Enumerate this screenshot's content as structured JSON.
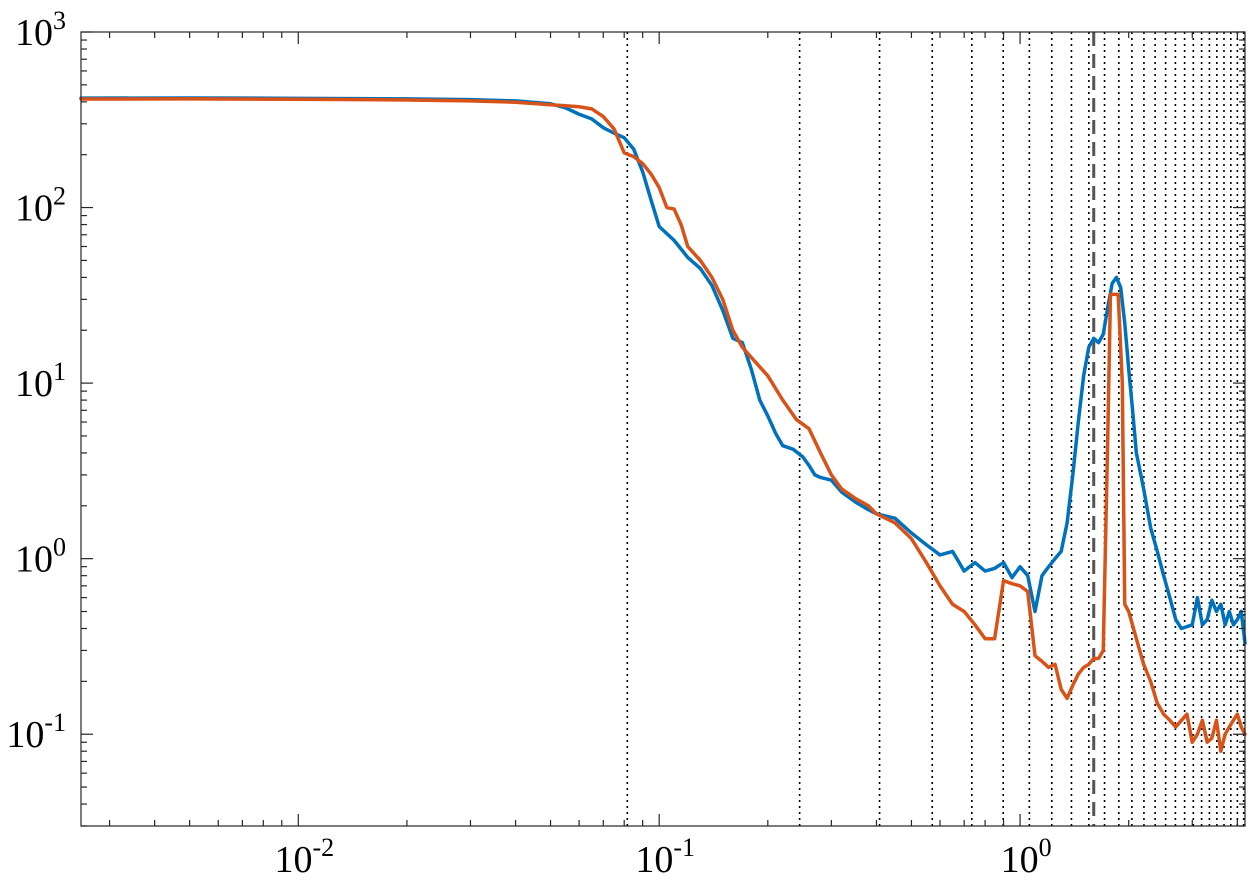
{
  "chart_data": {
    "type": "line",
    "xscale": "log",
    "yscale": "log",
    "xlim": [
      0.0025,
      4.2
    ],
    "ylim": [
      0.03,
      1000
    ],
    "grid": false,
    "x_ticks": [
      {
        "value": 0.01,
        "base": "10",
        "exp": "-2"
      },
      {
        "value": 0.1,
        "base": "10",
        "exp": "-1"
      },
      {
        "value": 1,
        "base": "10",
        "exp": "0"
      }
    ],
    "y_ticks": [
      {
        "value": 0.1,
        "base": "10",
        "exp": "-1"
      },
      {
        "value": 1,
        "base": "10",
        "exp": "0"
      },
      {
        "value": 10,
        "base": "10",
        "exp": "1"
      },
      {
        "value": 100,
        "base": "10",
        "exp": "2"
      },
      {
        "value": 1000,
        "base": "10",
        "exp": "3"
      }
    ],
    "reference_lines": {
      "dotted_x": [
        0.0816,
        0.245,
        0.408,
        0.571,
        0.735,
        0.898,
        1.061,
        1.224,
        1.388,
        1.551,
        1.714,
        1.878,
        2.041,
        2.204,
        2.367,
        2.531,
        2.694,
        2.857,
        3.02,
        3.184,
        3.347,
        3.51,
        3.673,
        3.837,
        4.0,
        4.163
      ],
      "dashed_x": [
        1.6
      ],
      "dotted_color": "#000000",
      "dashed_color": "#555555"
    },
    "series": [
      {
        "color": "#0072BD",
        "points": [
          [
            0.0025,
            420
          ],
          [
            0.005,
            421
          ],
          [
            0.01,
            419
          ],
          [
            0.02,
            416
          ],
          [
            0.03,
            412
          ],
          [
            0.04,
            405
          ],
          [
            0.05,
            390
          ],
          [
            0.055,
            370
          ],
          [
            0.06,
            340
          ],
          [
            0.065,
            320
          ],
          [
            0.07,
            285
          ],
          [
            0.075,
            265
          ],
          [
            0.08,
            250
          ],
          [
            0.085,
            215
          ],
          [
            0.09,
            160
          ],
          [
            0.095,
            110
          ],
          [
            0.1,
            78
          ],
          [
            0.11,
            65
          ],
          [
            0.12,
            52
          ],
          [
            0.13,
            45
          ],
          [
            0.14,
            36
          ],
          [
            0.15,
            26
          ],
          [
            0.16,
            18
          ],
          [
            0.17,
            17
          ],
          [
            0.18,
            12
          ],
          [
            0.19,
            8
          ],
          [
            0.2,
            6.5
          ],
          [
            0.21,
            5.2
          ],
          [
            0.22,
            4.4
          ],
          [
            0.235,
            4.2
          ],
          [
            0.25,
            3.8
          ],
          [
            0.26,
            3.4
          ],
          [
            0.27,
            3.0
          ],
          [
            0.28,
            2.9
          ],
          [
            0.3,
            2.8
          ],
          [
            0.32,
            2.4
          ],
          [
            0.35,
            2.1
          ],
          [
            0.38,
            1.9
          ],
          [
            0.4,
            1.8
          ],
          [
            0.45,
            1.7
          ],
          [
            0.5,
            1.4
          ],
          [
            0.55,
            1.2
          ],
          [
            0.6,
            1.05
          ],
          [
            0.65,
            1.1
          ],
          [
            0.7,
            0.85
          ],
          [
            0.75,
            0.95
          ],
          [
            0.8,
            0.85
          ],
          [
            0.85,
            0.88
          ],
          [
            0.9,
            0.95
          ],
          [
            0.95,
            0.78
          ],
          [
            1.0,
            0.9
          ],
          [
            1.05,
            0.8
          ],
          [
            1.1,
            0.5
          ],
          [
            1.15,
            0.8
          ],
          [
            1.2,
            0.9
          ],
          [
            1.25,
            1.0
          ],
          [
            1.3,
            1.1
          ],
          [
            1.35,
            1.6
          ],
          [
            1.4,
            3.0
          ],
          [
            1.45,
            6.0
          ],
          [
            1.5,
            11
          ],
          [
            1.55,
            16
          ],
          [
            1.6,
            18
          ],
          [
            1.65,
            17
          ],
          [
            1.7,
            19
          ],
          [
            1.75,
            27
          ],
          [
            1.8,
            37
          ],
          [
            1.85,
            40
          ],
          [
            1.9,
            35
          ],
          [
            1.95,
            22
          ],
          [
            2.0,
            12
          ],
          [
            2.05,
            7
          ],
          [
            2.1,
            4
          ],
          [
            2.2,
            2.5
          ],
          [
            2.3,
            1.5
          ],
          [
            2.4,
            1.1
          ],
          [
            2.5,
            0.8
          ],
          [
            2.6,
            0.6
          ],
          [
            2.7,
            0.45
          ],
          [
            2.8,
            0.4
          ],
          [
            3.0,
            0.42
          ],
          [
            3.1,
            0.6
          ],
          [
            3.2,
            0.42
          ],
          [
            3.3,
            0.45
          ],
          [
            3.4,
            0.58
          ],
          [
            3.5,
            0.5
          ],
          [
            3.6,
            0.55
          ],
          [
            3.7,
            0.42
          ],
          [
            3.8,
            0.5
          ],
          [
            3.9,
            0.42
          ],
          [
            4.0,
            0.45
          ],
          [
            4.1,
            0.5
          ],
          [
            4.2,
            0.33
          ]
        ]
      },
      {
        "color": "#D95319",
        "points": [
          [
            0.0025,
            415
          ],
          [
            0.005,
            416
          ],
          [
            0.01,
            414
          ],
          [
            0.02,
            410
          ],
          [
            0.03,
            405
          ],
          [
            0.04,
            398
          ],
          [
            0.05,
            385
          ],
          [
            0.055,
            380
          ],
          [
            0.06,
            375
          ],
          [
            0.065,
            365
          ],
          [
            0.07,
            330
          ],
          [
            0.075,
            280
          ],
          [
            0.08,
            205
          ],
          [
            0.085,
            195
          ],
          [
            0.09,
            178
          ],
          [
            0.095,
            155
          ],
          [
            0.1,
            130
          ],
          [
            0.105,
            100
          ],
          [
            0.11,
            98
          ],
          [
            0.115,
            80
          ],
          [
            0.12,
            60
          ],
          [
            0.13,
            50
          ],
          [
            0.14,
            40
          ],
          [
            0.15,
            30
          ],
          [
            0.16,
            20
          ],
          [
            0.17,
            16
          ],
          [
            0.18,
            14
          ],
          [
            0.2,
            11
          ],
          [
            0.22,
            8
          ],
          [
            0.24,
            6.2
          ],
          [
            0.26,
            5.5
          ],
          [
            0.28,
            4.0
          ],
          [
            0.3,
            3.0
          ],
          [
            0.32,
            2.5
          ],
          [
            0.35,
            2.2
          ],
          [
            0.38,
            2.0
          ],
          [
            0.4,
            1.8
          ],
          [
            0.45,
            1.6
          ],
          [
            0.5,
            1.3
          ],
          [
            0.55,
            0.95
          ],
          [
            0.6,
            0.7
          ],
          [
            0.65,
            0.55
          ],
          [
            0.7,
            0.5
          ],
          [
            0.75,
            0.42
          ],
          [
            0.8,
            0.35
          ],
          [
            0.85,
            0.35
          ],
          [
            0.9,
            0.75
          ],
          [
            0.95,
            0.72
          ],
          [
            1.0,
            0.7
          ],
          [
            1.05,
            0.65
          ],
          [
            1.1,
            0.28
          ],
          [
            1.15,
            0.26
          ],
          [
            1.2,
            0.24
          ],
          [
            1.25,
            0.25
          ],
          [
            1.3,
            0.18
          ],
          [
            1.35,
            0.16
          ],
          [
            1.4,
            0.19
          ],
          [
            1.45,
            0.22
          ],
          [
            1.5,
            0.24
          ],
          [
            1.55,
            0.25
          ],
          [
            1.6,
            0.27
          ],
          [
            1.65,
            0.27
          ],
          [
            1.7,
            0.3
          ],
          [
            1.75,
            5.0
          ],
          [
            1.78,
            32
          ],
          [
            1.82,
            32
          ],
          [
            1.87,
            32
          ],
          [
            1.92,
            10
          ],
          [
            1.95,
            0.55
          ],
          [
            2.0,
            0.5
          ],
          [
            2.1,
            0.35
          ],
          [
            2.2,
            0.25
          ],
          [
            2.3,
            0.2
          ],
          [
            2.4,
            0.15
          ],
          [
            2.5,
            0.13
          ],
          [
            2.6,
            0.12
          ],
          [
            2.7,
            0.11
          ],
          [
            2.8,
            0.12
          ],
          [
            2.9,
            0.13
          ],
          [
            3.0,
            0.09
          ],
          [
            3.1,
            0.1
          ],
          [
            3.2,
            0.12
          ],
          [
            3.3,
            0.09
          ],
          [
            3.4,
            0.095
          ],
          [
            3.5,
            0.12
          ],
          [
            3.6,
            0.08
          ],
          [
            3.7,
            0.1
          ],
          [
            3.8,
            0.11
          ],
          [
            3.9,
            0.12
          ],
          [
            4.0,
            0.13
          ],
          [
            4.1,
            0.11
          ],
          [
            4.2,
            0.1
          ]
        ]
      }
    ]
  }
}
